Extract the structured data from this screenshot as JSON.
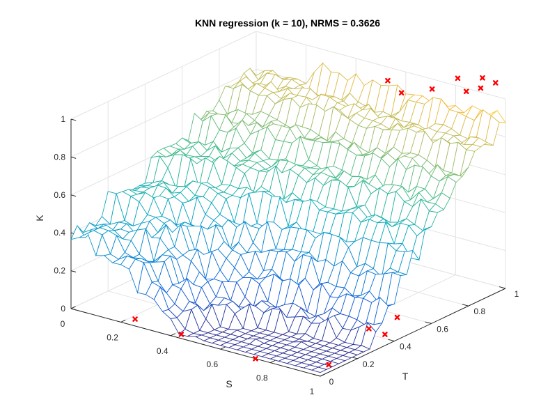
{
  "chart_data": {
    "type": "surface",
    "title": "KNN regression (k = 10), NRMS = 0.3626",
    "xlabel": "S",
    "ylabel": "T",
    "zlabel": "K",
    "xlim": [
      0,
      1
    ],
    "ylim": [
      0,
      1
    ],
    "zlim": [
      0,
      1
    ],
    "xticks": [
      "0",
      "0.2",
      "0.4",
      "0.6",
      "0.8",
      "1"
    ],
    "yticks": [
      "0",
      "0.2",
      "0.4",
      "0.6",
      "0.8",
      "1"
    ],
    "zticks": [
      "0",
      "0.2",
      "0.4",
      "0.6",
      "0.8",
      "1"
    ],
    "grid": true,
    "colormap": "parula",
    "mesh_size": [
      31,
      31
    ],
    "marker_color": "#ff0000",
    "scatter_points": [
      {
        "x": 0.22,
        "y": 0.05,
        "z": 0.0
      },
      {
        "x": 0.42,
        "y": 0.03,
        "z": 0.0
      },
      {
        "x": 0.74,
        "y": 0.0,
        "z": 0.0
      },
      {
        "x": 0.96,
        "y": 0.1,
        "z": 0.0
      },
      {
        "x": 0.94,
        "y": 0.43,
        "z": 0.0
      },
      {
        "x": 0.9,
        "y": 0.55,
        "z": 0.02
      },
      {
        "x": 0.95,
        "y": 0.33,
        "z": 0.08
      },
      {
        "x": 0.55,
        "y": 0.97,
        "z": 0.95
      },
      {
        "x": 0.62,
        "y": 0.95,
        "z": 0.92
      },
      {
        "x": 0.78,
        "y": 0.9,
        "z": 1.02
      },
      {
        "x": 0.92,
        "y": 0.85,
        "z": 1.15
      },
      {
        "x": 0.88,
        "y": 0.95,
        "z": 1.02
      },
      {
        "x": 0.96,
        "y": 0.92,
        "z": 1.08
      },
      {
        "x": 0.93,
        "y": 0.97,
        "z": 1.1
      },
      {
        "x": 0.99,
        "y": 0.96,
        "z": 1.1
      }
    ]
  }
}
